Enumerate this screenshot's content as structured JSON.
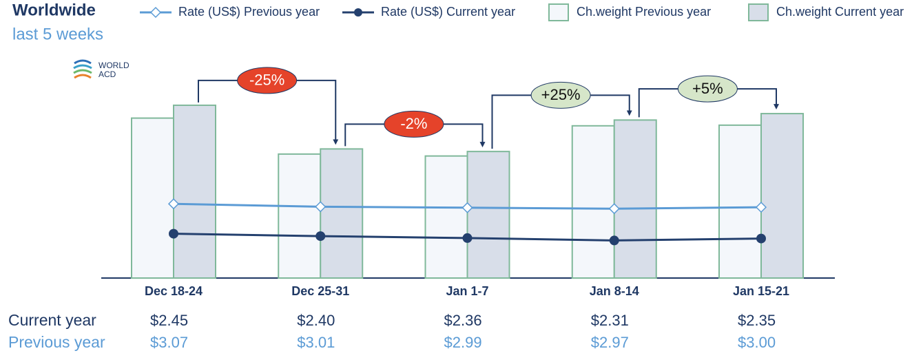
{
  "chart_data": {
    "type": "bar-line",
    "title": "Worldwide",
    "subtitle": "last 5 weeks",
    "logo": [
      "WORLD",
      "ACD"
    ],
    "categories": [
      "Dec 18-24",
      "Dec 25-31",
      "Jan 1-7",
      "Jan 8-14",
      "Jan 15-21"
    ],
    "ylim": [
      0,
      300
    ],
    "y2lim": [
      1.53,
      5.53
    ],
    "series": [
      {
        "name": "Rate (US$) Previous year",
        "type": "line",
        "axis": "y2",
        "color": "#5b9bd5",
        "marker": "diamond",
        "values": [
          3.07,
          3.01,
          2.99,
          2.97,
          3.0
        ],
        "value_labels": [
          "$3.07",
          "$3.01",
          "$2.99",
          "$2.97",
          "$3.00"
        ]
      },
      {
        "name": "Rate (US$) Current year",
        "type": "line",
        "axis": "y2",
        "color": "#24406e",
        "marker": "circle",
        "values": [
          2.45,
          2.4,
          2.36,
          2.31,
          2.35
        ],
        "value_labels": [
          "$2.45",
          "$2.40",
          "$2.36",
          "$2.31",
          "$2.35"
        ]
      },
      {
        "name": "Ch.weight Previous year",
        "type": "bar",
        "color": "#f4f7fb",
        "edge_color": "#7fb89a",
        "values": [
          249,
          193,
          190,
          237,
          238
        ]
      },
      {
        "name": "Ch.weight Current year",
        "type": "bar",
        "color": "#d8dee9",
        "edge_color": "#7fb89a",
        "values": [
          269,
          201,
          197,
          246,
          256
        ]
      }
    ],
    "table_rows": [
      {
        "label": "Current year",
        "series": 1,
        "color": "#1f3864"
      },
      {
        "label": "Previous year",
        "series": 0,
        "color": "#5b9bd5"
      }
    ],
    "annotations": [
      {
        "text": "-25%",
        "from": 0,
        "to": 1,
        "color": "#e5432a",
        "text_color": "#ffffff"
      },
      {
        "text": "-2%",
        "from": 1,
        "to": 2,
        "color": "#e5432a",
        "text_color": "#ffffff"
      },
      {
        "text": "+25%",
        "from": 2,
        "to": 3,
        "color": "#d6e6c9",
        "text_color": "#111111"
      },
      {
        "text": "+5%",
        "from": 3,
        "to": 4,
        "color": "#d6e6c9",
        "text_color": "#111111"
      }
    ]
  }
}
